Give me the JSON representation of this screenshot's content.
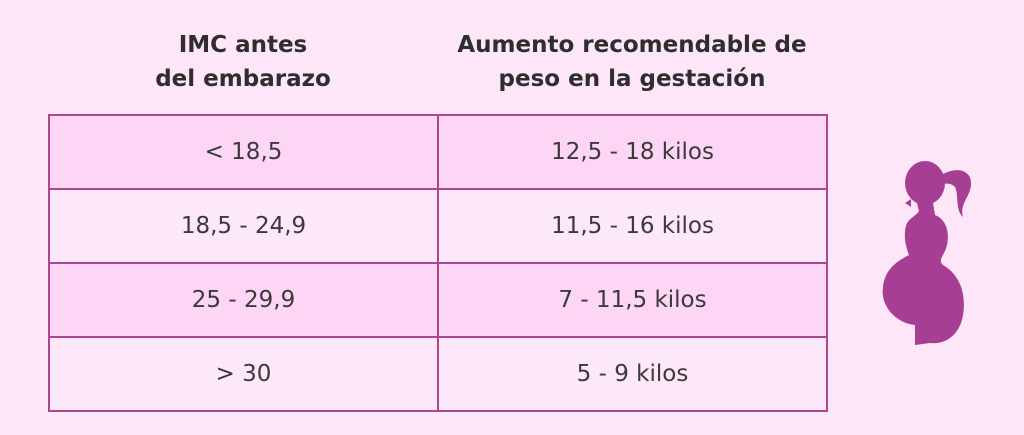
{
  "table": {
    "headers": [
      "IMC antes\ndel embarazo",
      "Aumento recomendable de\npeso en la gestación"
    ],
    "rows": [
      [
        "< 18,5",
        "12,5 - 18 kilos"
      ],
      [
        "18,5 - 24,9",
        "11,5 - 16 kilos"
      ],
      [
        "25 - 29,9",
        "7 - 11,5 kilos"
      ],
      [
        "> 30",
        "5 - 9 kilos"
      ]
    ]
  }
}
